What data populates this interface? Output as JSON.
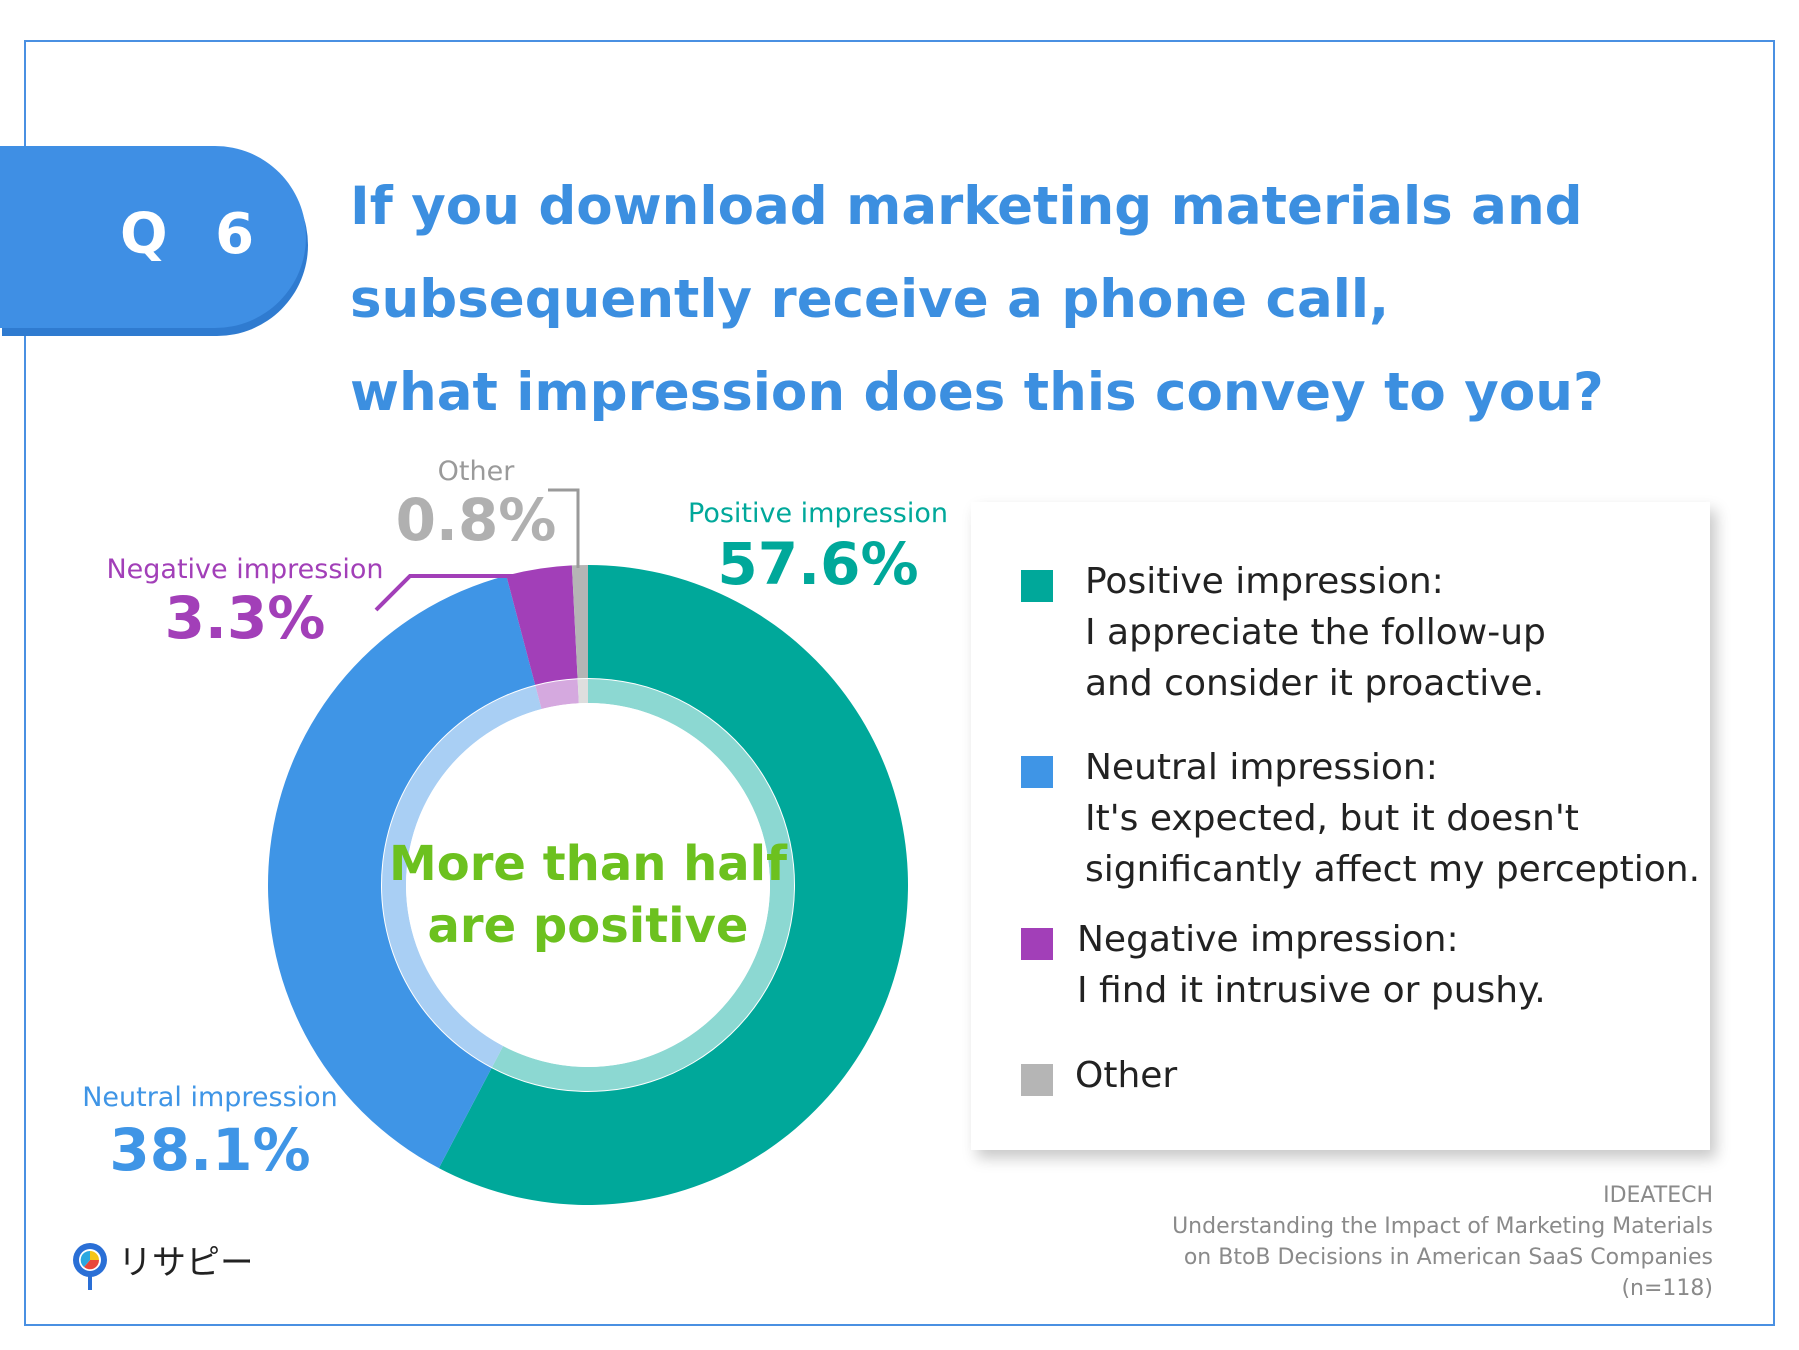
{
  "question": {
    "badge": "Q 6",
    "lines": [
      "If you download marketing materials and",
      "subsequently receive a phone call,",
      "what impression does this convey to you?"
    ]
  },
  "chart_data": {
    "type": "pie",
    "slices": [
      {
        "name": "Positive impression",
        "value": 57.6,
        "label": "57.6%",
        "color": "#00a89a"
      },
      {
        "name": "Neutral impression",
        "value": 38.1,
        "label": "38.1%",
        "color": "#3f95e6"
      },
      {
        "name": "Negative impression",
        "value": 3.3,
        "label": "3.3%",
        "color": "#a23fb8"
      },
      {
        "name": "Other",
        "value": 0.8,
        "label": "0.8%",
        "color": "#b5b5b5"
      }
    ],
    "center_text": [
      "More than half",
      "are positive"
    ],
    "center_color": "#6cc11f"
  },
  "legend": [
    {
      "lines": [
        "Positive impression:",
        "I appreciate the follow-up",
        "and consider it proactive."
      ],
      "color": "#00a89a"
    },
    {
      "lines": [
        "Neutral impression:",
        "It's expected, but it doesn't",
        "significantly affect my perception."
      ],
      "color": "#3f95e6"
    },
    {
      "lines": [
        "Negative impression:",
        "I find it intrusive or pushy."
      ],
      "color": "#a23fb8"
    },
    {
      "lines": [
        "Other"
      ],
      "color": "#b5b5b5"
    }
  ],
  "source": {
    "lines": [
      "IDEATECH",
      "Understanding the Impact of Marketing Materials",
      "on BtoB Decisions in American SaaS Companies",
      "(n=118)"
    ]
  },
  "logo": {
    "text": "リサピー",
    "icon": "pin-pie-icon"
  }
}
